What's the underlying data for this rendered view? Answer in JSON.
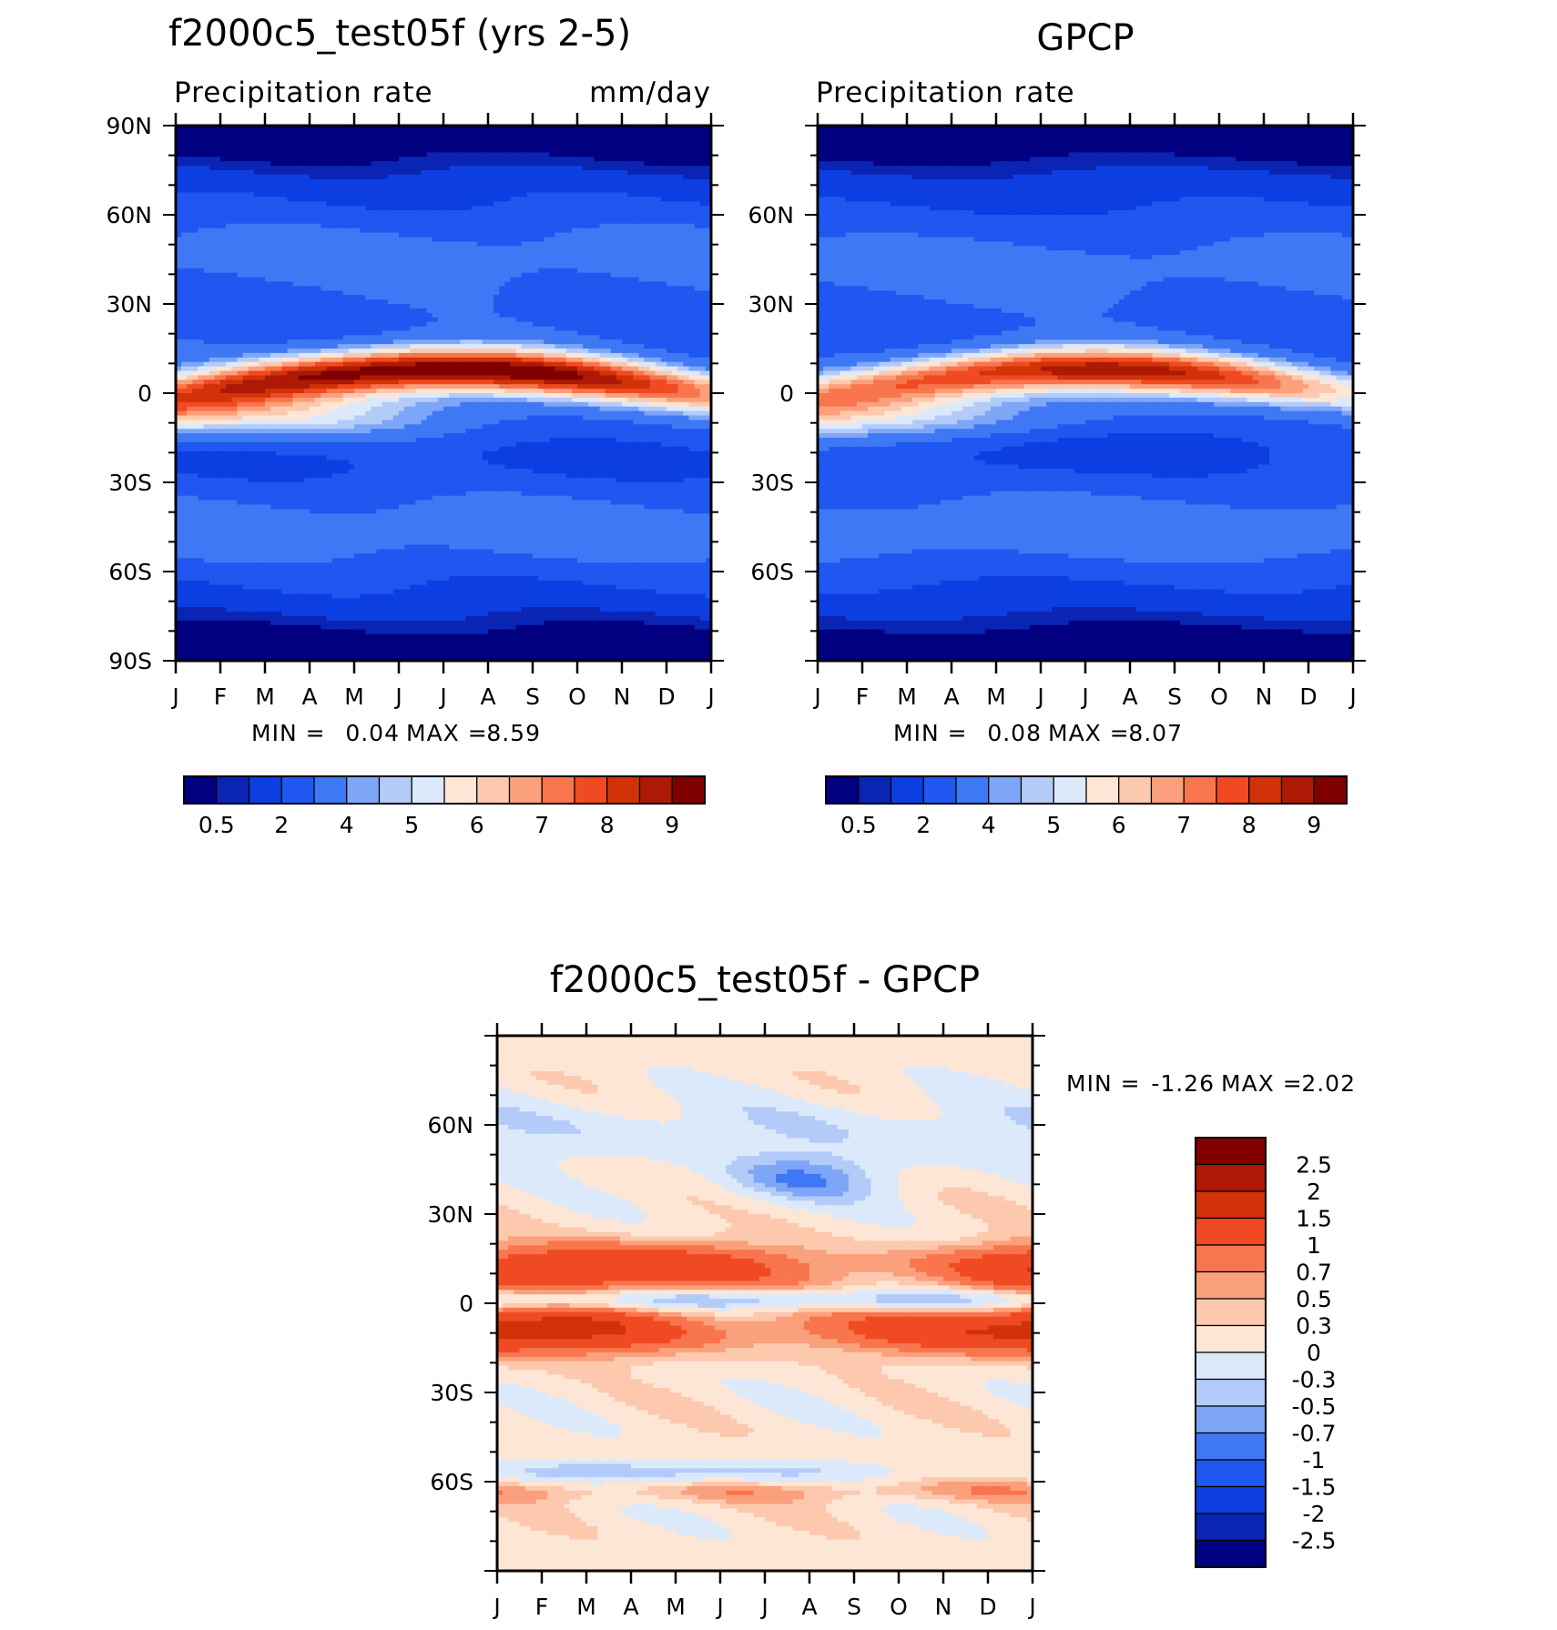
{
  "colors": {
    "abs_palette": [
      "#000080",
      "#0a24b3",
      "#0d3ee2",
      "#1f57f0",
      "#3f78f5",
      "#7ea6f7",
      "#b3cbf9",
      "#dce9fb",
      "#fde6d5",
      "#fcc9ae",
      "#fba07c",
      "#f8754d",
      "#f04a22",
      "#d23208",
      "#ae1905",
      "#800000"
    ],
    "diff_palette": [
      "#000080",
      "#0a24b3",
      "#0d3ee2",
      "#1f57f0",
      "#3f78f5",
      "#7ea6f7",
      "#b3cbf9",
      "#dce9fb",
      "#fde6d5",
      "#fcc9ae",
      "#fba07c",
      "#f8754d",
      "#f04a22",
      "#d23208",
      "#ae1905",
      "#800000"
    ]
  },
  "chart_data": [
    {
      "type": "heatmap",
      "title": "f2000c5_test05f (yrs 2-5)",
      "subtitle_left": "Precipitation rate",
      "subtitle_right": "mm/day",
      "months": [
        "J",
        "F",
        "M",
        "A",
        "M",
        "J",
        "J",
        "A",
        "S",
        "O",
        "N",
        "D",
        "J"
      ],
      "lat_labels": [
        "90N",
        "60N",
        "30N",
        "0",
        "30S",
        "60S",
        "90S"
      ],
      "lat_values": [
        90,
        60,
        30,
        0,
        -30,
        -60,
        -90
      ],
      "stats": {
        "min_label": "MIN =",
        "min": "0.04",
        "max_label": "MAX =",
        "max": "8.59"
      },
      "colorbar": {
        "labels": [
          "0.5",
          "2",
          "4",
          "5",
          "6",
          "7",
          "8",
          "9"
        ],
        "levels": [
          0.5,
          1,
          2,
          3,
          4,
          4.5,
          5,
          5.5,
          6,
          6.5,
          7,
          7.5,
          8,
          8.5,
          9
        ]
      }
    },
    {
      "type": "heatmap",
      "title": "GPCP",
      "subtitle_left": "Precipitation rate",
      "subtitle_right": "",
      "months": [
        "J",
        "F",
        "M",
        "A",
        "M",
        "J",
        "J",
        "A",
        "S",
        "O",
        "N",
        "D",
        "J"
      ],
      "lat_labels": [
        "60N",
        "30N",
        "0",
        "30S",
        "60S"
      ],
      "lat_values": [
        60,
        30,
        0,
        -30,
        -60
      ],
      "stats": {
        "min_label": "MIN =",
        "min": "0.08",
        "max_label": "MAX =",
        "max": "8.07"
      },
      "colorbar": {
        "labels": [
          "0.5",
          "2",
          "4",
          "5",
          "6",
          "7",
          "8",
          "9"
        ],
        "levels": [
          0.5,
          1,
          2,
          3,
          4,
          4.5,
          5,
          5.5,
          6,
          6.5,
          7,
          7.5,
          8,
          8.5,
          9
        ]
      }
    },
    {
      "type": "heatmap",
      "title": "f2000c5_test05f - GPCP",
      "months": [
        "J",
        "F",
        "M",
        "A",
        "M",
        "J",
        "J",
        "A",
        "S",
        "O",
        "N",
        "D",
        "J"
      ],
      "lat_labels": [
        "60N",
        "30N",
        "0",
        "30S",
        "60S"
      ],
      "lat_values": [
        60,
        30,
        0,
        -30,
        -60
      ],
      "stats": {
        "min_label": "MIN =",
        "min": "-1.26",
        "max_label": "MAX =",
        "max": "2.02"
      },
      "colorbar": {
        "labels": [
          "2.5",
          "2",
          "1.5",
          "1",
          "0.7",
          "0.5",
          "0.3",
          "0",
          "-0.3",
          "-0.5",
          "-0.7",
          "-1",
          "-1.5",
          "-2",
          "-2.5"
        ]
      }
    }
  ]
}
